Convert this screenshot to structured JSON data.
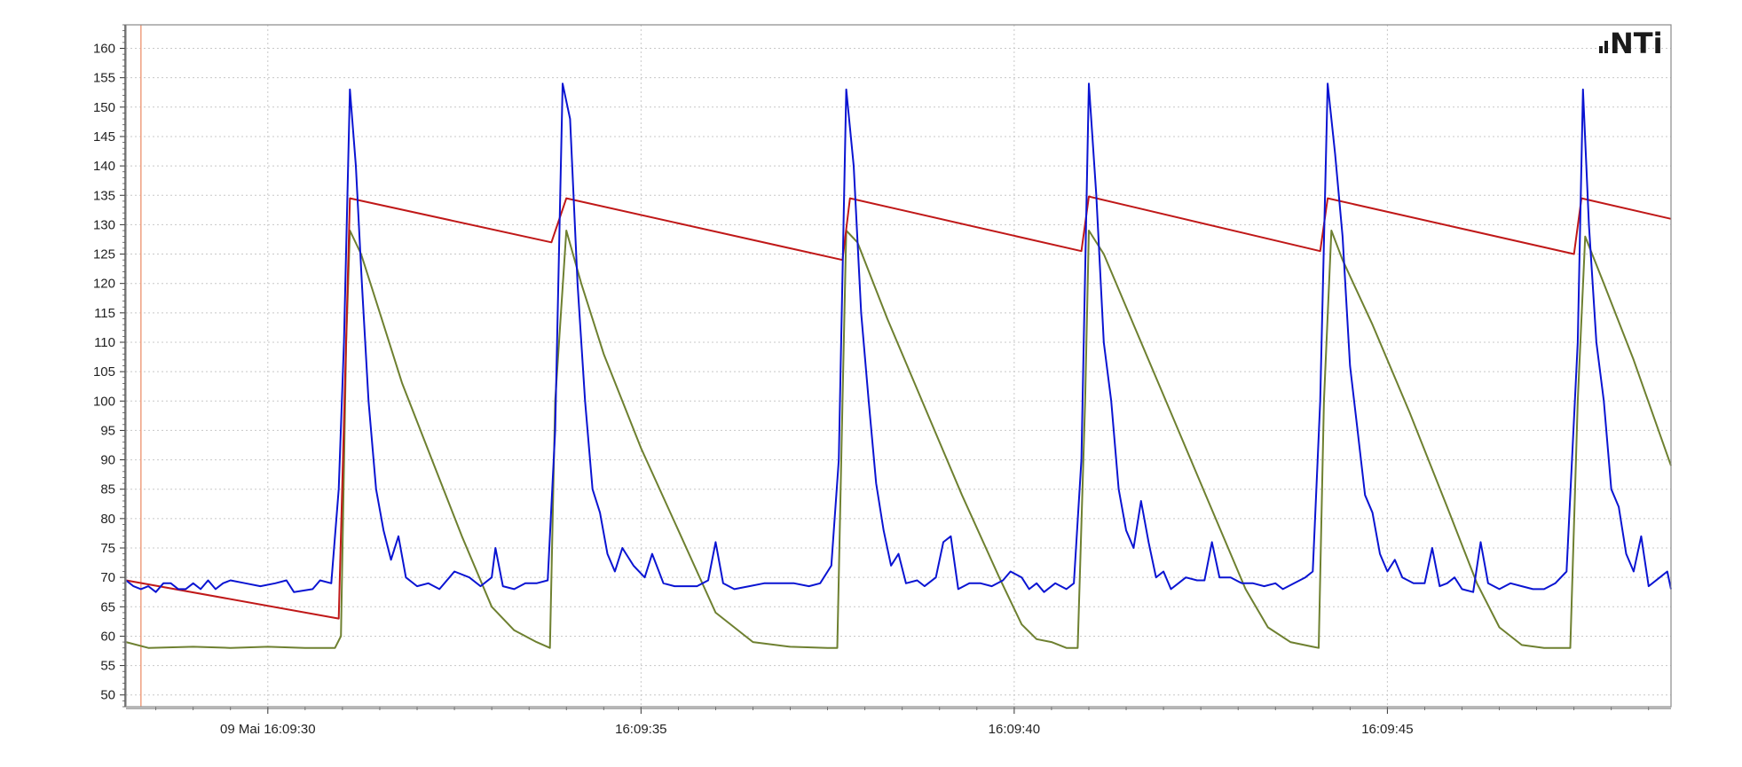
{
  "brand": {
    "logo_text": "NTi",
    "logo_name": "nti-logo"
  },
  "colors": {
    "background": "#ffffff",
    "plot_border": "#8a8a8a",
    "grid": "#c8c8c8",
    "cursor": "#f0a080",
    "axis_text": "#222222"
  },
  "chart_data": {
    "type": "line",
    "title": "",
    "xlabel": "",
    "ylabel": "",
    "grid": true,
    "legend": "none",
    "x_unit": "seconds",
    "xlim": [
      "09 Mai 16:09:28.1",
      "09 Mai 16:09:48.8"
    ],
    "ylim": [
      48,
      164
    ],
    "y_ticks": [
      50,
      55,
      60,
      65,
      70,
      75,
      80,
      85,
      90,
      95,
      100,
      105,
      110,
      115,
      120,
      125,
      130,
      135,
      140,
      145,
      150,
      155,
      160
    ],
    "x_tick_labels": [
      {
        "t": "16:09:30",
        "label": "09 Mai 16:09:30"
      },
      {
        "t": "16:09:35",
        "label": "16:09:35"
      },
      {
        "t": "16:09:40",
        "label": "16:09:40"
      },
      {
        "t": "16:09:45",
        "label": "16:09:45"
      }
    ],
    "cursor_time": "16:09:28.30",
    "series": [
      {
        "color": "#0a14d2",
        "points": [
          [
            "16:09:28.10",
            69.5
          ],
          [
            "16:09:28.20",
            68.5
          ],
          [
            "16:09:28.30",
            68
          ],
          [
            "16:09:28.40",
            68.5
          ],
          [
            "16:09:28.50",
            67.5
          ],
          [
            "16:09:28.60",
            69
          ],
          [
            "16:09:28.70",
            69
          ],
          [
            "16:09:28.80",
            68
          ],
          [
            "16:09:28.90",
            68
          ],
          [
            "16:09:29.00",
            69
          ],
          [
            "16:09:29.10",
            68
          ],
          [
            "16:09:29.20",
            69.5
          ],
          [
            "16:09:29.30",
            68
          ],
          [
            "16:09:29.40",
            69
          ],
          [
            "16:09:29.50",
            69.5
          ],
          [
            "16:09:29.70",
            69
          ],
          [
            "16:09:29.90",
            68.5
          ],
          [
            "16:09:30.10",
            69
          ],
          [
            "16:09:30.25",
            69.5
          ],
          [
            "16:09:30.35",
            67.5
          ],
          [
            "16:09:30.60",
            68
          ],
          [
            "16:09:30.70",
            69.5
          ],
          [
            "16:09:30.85",
            69
          ],
          [
            "16:09:30.95",
            85
          ],
          [
            "16:09:31.02",
            110
          ],
          [
            "16:09:31.10",
            153
          ],
          [
            "16:09:31.18",
            140
          ],
          [
            "16:09:31.26",
            120
          ],
          [
            "16:09:31.35",
            100
          ],
          [
            "16:09:31.45",
            85
          ],
          [
            "16:09:31.55",
            78
          ],
          [
            "16:09:31.65",
            73
          ],
          [
            "16:09:31.75",
            77
          ],
          [
            "16:09:31.85",
            70
          ],
          [
            "16:09:32.00",
            68.5
          ],
          [
            "16:09:32.15",
            69
          ],
          [
            "16:09:32.30",
            68
          ],
          [
            "16:09:32.50",
            71
          ],
          [
            "16:09:32.70",
            70
          ],
          [
            "16:09:32.85",
            68.5
          ],
          [
            "16:09:33.00",
            70
          ],
          [
            "16:09:33.05",
            75
          ],
          [
            "16:09:33.15",
            68.5
          ],
          [
            "16:09:33.30",
            68
          ],
          [
            "16:09:33.45",
            69
          ],
          [
            "16:09:33.60",
            69
          ],
          [
            "16:09:33.75",
            69.5
          ],
          [
            "16:09:33.85",
            95
          ],
          [
            "16:09:33.95",
            154
          ],
          [
            "16:09:34.05",
            148
          ],
          [
            "16:09:34.15",
            120
          ],
          [
            "16:09:34.25",
            100
          ],
          [
            "16:09:34.35",
            85
          ],
          [
            "16:09:34.45",
            81
          ],
          [
            "16:09:34.55",
            74
          ],
          [
            "16:09:34.65",
            71
          ],
          [
            "16:09:34.75",
            75
          ],
          [
            "16:09:34.90",
            72
          ],
          [
            "16:09:35.05",
            70
          ],
          [
            "16:09:35.15",
            74
          ],
          [
            "16:09:35.30",
            69
          ],
          [
            "16:09:35.45",
            68.5
          ],
          [
            "16:09:35.60",
            68.5
          ],
          [
            "16:09:35.75",
            68.5
          ],
          [
            "16:09:35.90",
            69.5
          ],
          [
            "16:09:36.00",
            76
          ],
          [
            "16:09:36.10",
            69
          ],
          [
            "16:09:36.25",
            68
          ],
          [
            "16:09:36.45",
            68.5
          ],
          [
            "16:09:36.65",
            69
          ],
          [
            "16:09:36.85",
            69
          ],
          [
            "16:09:37.05",
            69
          ],
          [
            "16:09:37.25",
            68.5
          ],
          [
            "16:09:37.40",
            69
          ],
          [
            "16:09:37.55",
            72
          ],
          [
            "16:09:37.65",
            90
          ],
          [
            "16:09:37.75",
            153
          ],
          [
            "16:09:37.85",
            140
          ],
          [
            "16:09:37.95",
            115
          ],
          [
            "16:09:38.05",
            100
          ],
          [
            "16:09:38.15",
            86
          ],
          [
            "16:09:38.25",
            78
          ],
          [
            "16:09:38.35",
            72
          ],
          [
            "16:09:38.45",
            74
          ],
          [
            "16:09:38.55",
            69
          ],
          [
            "16:09:38.70",
            69.5
          ],
          [
            "16:09:38.80",
            68.5
          ],
          [
            "16:09:38.95",
            70
          ],
          [
            "16:09:39.05",
            76
          ],
          [
            "16:09:39.15",
            77
          ],
          [
            "16:09:39.25",
            68
          ],
          [
            "16:09:39.40",
            69
          ],
          [
            "16:09:39.55",
            69
          ],
          [
            "16:09:39.70",
            68.5
          ],
          [
            "16:09:39.85",
            69.5
          ],
          [
            "16:09:39.95",
            71
          ],
          [
            "16:09:40.10",
            70
          ],
          [
            "16:09:40.20",
            68
          ],
          [
            "16:09:40.30",
            69
          ],
          [
            "16:09:40.40",
            67.5
          ],
          [
            "16:09:40.55",
            69
          ],
          [
            "16:09:40.70",
            68
          ],
          [
            "16:09:40.80",
            69
          ],
          [
            "16:09:40.90",
            90
          ],
          [
            "16:09:41.00",
            154
          ],
          [
            "16:09:41.10",
            135
          ],
          [
            "16:09:41.20",
            110
          ],
          [
            "16:09:41.30",
            100
          ],
          [
            "16:09:41.40",
            85
          ],
          [
            "16:09:41.50",
            78
          ],
          [
            "16:09:41.60",
            75
          ],
          [
            "16:09:41.70",
            83
          ],
          [
            "16:09:41.80",
            76
          ],
          [
            "16:09:41.90",
            70
          ],
          [
            "16:09:42.00",
            71
          ],
          [
            "16:09:42.10",
            68
          ],
          [
            "16:09:42.20",
            69
          ],
          [
            "16:09:42.30",
            70
          ],
          [
            "16:09:42.45",
            69.5
          ],
          [
            "16:09:42.55",
            69.5
          ],
          [
            "16:09:42.65",
            76
          ],
          [
            "16:09:42.75",
            70
          ],
          [
            "16:09:42.90",
            70
          ],
          [
            "16:09:43.05",
            69
          ],
          [
            "16:09:43.20",
            69
          ],
          [
            "16:09:43.35",
            68.5
          ],
          [
            "16:09:43.50",
            69
          ],
          [
            "16:09:43.60",
            68
          ],
          [
            "16:09:43.75",
            69
          ],
          [
            "16:09:43.90",
            70
          ],
          [
            "16:09:44.00",
            71
          ],
          [
            "16:09:44.10",
            100
          ],
          [
            "16:09:44.20",
            154
          ],
          [
            "16:09:44.30",
            142
          ],
          [
            "16:09:44.40",
            128
          ],
          [
            "16:09:44.50",
            106
          ],
          [
            "16:09:44.60",
            95
          ],
          [
            "16:09:44.70",
            84
          ],
          [
            "16:09:44.80",
            81
          ],
          [
            "16:09:44.90",
            74
          ],
          [
            "16:09:45.00",
            71
          ],
          [
            "16:09:45.10",
            73
          ],
          [
            "16:09:45.20",
            70
          ],
          [
            "16:09:45.35",
            69
          ],
          [
            "16:09:45.50",
            69
          ],
          [
            "16:09:45.60",
            75
          ],
          [
            "16:09:45.70",
            68.5
          ],
          [
            "16:09:45.80",
            69
          ],
          [
            "16:09:45.90",
            70
          ],
          [
            "16:09:46.00",
            68
          ],
          [
            "16:09:46.15",
            67.5
          ],
          [
            "16:09:46.25",
            76
          ],
          [
            "16:09:46.35",
            69
          ],
          [
            "16:09:46.50",
            68
          ],
          [
            "16:09:46.65",
            69
          ],
          [
            "16:09:46.80",
            68.5
          ],
          [
            "16:09:46.95",
            68
          ],
          [
            "16:09:47.10",
            68
          ],
          [
            "16:09:47.25",
            69
          ],
          [
            "16:09:47.40",
            71
          ],
          [
            "16:09:47.55",
            110
          ],
          [
            "16:09:47.62",
            153
          ],
          [
            "16:09:47.70",
            130
          ],
          [
            "16:09:47.80",
            110
          ],
          [
            "16:09:47.90",
            100
          ],
          [
            "16:09:48.00",
            85
          ],
          [
            "16:09:48.10",
            82
          ],
          [
            "16:09:48.20",
            74
          ],
          [
            "16:09:48.30",
            71
          ],
          [
            "16:09:48.40",
            77
          ],
          [
            "16:09:48.50",
            68.5
          ],
          [
            "16:09:48.65",
            70
          ],
          [
            "16:09:48.75",
            71
          ],
          [
            "16:09:48.80",
            68
          ]
        ]
      },
      {
        "color": "#c01818",
        "points": [
          [
            "16:09:28.10",
            69.5
          ],
          [
            "16:09:30.95",
            63
          ],
          [
            "16:09:31.10",
            134.5
          ],
          [
            "16:09:33.80",
            127
          ],
          [
            "16:09:34.00",
            134.5
          ],
          [
            "16:09:37.70",
            124
          ],
          [
            "16:09:37.80",
            134.5
          ],
          [
            "16:09:40.90",
            125.5
          ],
          [
            "16:09:41.00",
            134.8
          ],
          [
            "16:09:44.10",
            125.5
          ],
          [
            "16:09:44.20",
            134.5
          ],
          [
            "16:09:47.50",
            125
          ],
          [
            "16:09:47.60",
            134.5
          ],
          [
            "16:09:48.80",
            131
          ]
        ]
      },
      {
        "color": "#6e8030",
        "points": [
          [
            "16:09:28.10",
            59
          ],
          [
            "16:09:28.40",
            58
          ],
          [
            "16:09:29.00",
            58.2
          ],
          [
            "16:09:29.50",
            58
          ],
          [
            "16:09:30.00",
            58.2
          ],
          [
            "16:09:30.50",
            58
          ],
          [
            "16:09:30.90",
            58
          ],
          [
            "16:09:30.98",
            60
          ],
          [
            "16:09:31.05",
            110
          ],
          [
            "16:09:31.10",
            129
          ],
          [
            "16:09:31.25",
            125
          ],
          [
            "16:09:31.50",
            115
          ],
          [
            "16:09:31.80",
            103
          ],
          [
            "16:09:32.20",
            90
          ],
          [
            "16:09:32.60",
            77
          ],
          [
            "16:09:33.00",
            65
          ],
          [
            "16:09:33.30",
            61
          ],
          [
            "16:09:33.60",
            59
          ],
          [
            "16:09:33.78",
            58
          ],
          [
            "16:09:33.85",
            100
          ],
          [
            "16:09:34.00",
            129
          ],
          [
            "16:09:34.20",
            120
          ],
          [
            "16:09:34.50",
            108
          ],
          [
            "16:09:35.00",
            92
          ],
          [
            "16:09:35.50",
            78
          ],
          [
            "16:09:36.00",
            64
          ],
          [
            "16:09:36.50",
            59
          ],
          [
            "16:09:37.00",
            58.2
          ],
          [
            "16:09:37.50",
            58
          ],
          [
            "16:09:37.63",
            58
          ],
          [
            "16:09:37.70",
            100
          ],
          [
            "16:09:37.75",
            129
          ],
          [
            "16:09:37.90",
            127
          ],
          [
            "16:09:38.30",
            114
          ],
          [
            "16:09:38.80",
            99
          ],
          [
            "16:09:39.30",
            84
          ],
          [
            "16:09:39.80",
            70
          ],
          [
            "16:09:40.10",
            62
          ],
          [
            "16:09:40.30",
            59.5
          ],
          [
            "16:09:40.50",
            59
          ],
          [
            "16:09:40.70",
            58
          ],
          [
            "16:09:40.85",
            58
          ],
          [
            "16:09:40.95",
            100
          ],
          [
            "16:09:41.00",
            129
          ],
          [
            "16:09:41.20",
            125
          ],
          [
            "16:09:41.60",
            113
          ],
          [
            "16:09:42.10",
            98
          ],
          [
            "16:09:42.60",
            83
          ],
          [
            "16:09:43.10",
            68
          ],
          [
            "16:09:43.40",
            61.5
          ],
          [
            "16:09:43.70",
            59
          ],
          [
            "16:09:44.00",
            58.2
          ],
          [
            "16:09:44.08",
            58
          ],
          [
            "16:09:44.15",
            100
          ],
          [
            "16:09:44.25",
            129
          ],
          [
            "16:09:44.40",
            124
          ],
          [
            "16:09:44.80",
            113
          ],
          [
            "16:09:45.30",
            98
          ],
          [
            "16:09:45.80",
            82
          ],
          [
            "16:09:46.20",
            69
          ],
          [
            "16:09:46.50",
            61.5
          ],
          [
            "16:09:46.80",
            58.5
          ],
          [
            "16:09:47.10",
            58
          ],
          [
            "16:09:47.45",
            58
          ],
          [
            "16:09:47.55",
            100
          ],
          [
            "16:09:47.65",
            128
          ],
          [
            "16:09:47.90",
            120
          ],
          [
            "16:09:48.30",
            107
          ],
          [
            "16:09:48.80",
            89
          ]
        ]
      }
    ]
  }
}
